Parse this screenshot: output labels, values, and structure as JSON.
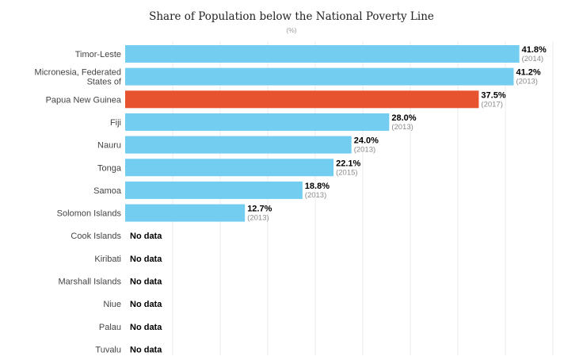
{
  "chart_data": {
    "type": "bar",
    "orientation": "horizontal",
    "title": "Share of Population below the National Poverty Line",
    "subtitle": "(%)",
    "categories": [
      [
        "Timor-Leste"
      ],
      [
        "Micronesia, Federated",
        "States of"
      ],
      [
        "Papua New Guinea"
      ],
      [
        "Fiji"
      ],
      [
        "Nauru"
      ],
      [
        "Tonga"
      ],
      [
        "Samoa"
      ],
      [
        "Solomon Islands"
      ],
      [
        "Cook Islands"
      ],
      [
        "Kiribati"
      ],
      [
        "Marshall Islands"
      ],
      [
        "Niue"
      ],
      [
        "Palau"
      ],
      [
        "Tuvalu"
      ]
    ],
    "values": [
      41.8,
      41.2,
      37.5,
      28.0,
      24.0,
      22.1,
      18.8,
      12.7,
      null,
      null,
      null,
      null,
      null,
      null
    ],
    "value_labels": [
      "41.8%",
      "41.2%",
      "37.5%",
      "28.0%",
      "24.0%",
      "22.1%",
      "18.8%",
      "12.7%",
      "No data",
      "No data",
      "No data",
      "No data",
      "No data",
      "No data"
    ],
    "years": [
      "(2014)",
      "(2013)",
      "(2017)",
      "(2013)",
      "(2013)",
      "(2015)",
      "(2013)",
      "(2013)",
      "",
      "",
      "",
      "",
      "",
      ""
    ],
    "highlight": "Papua New Guinea",
    "colors": {
      "default": "#72cdf1",
      "highlight": "#e8532f",
      "grid": "#ebebeb"
    },
    "xlim": [
      0,
      42
    ],
    "grid": true,
    "legend": "none"
  }
}
